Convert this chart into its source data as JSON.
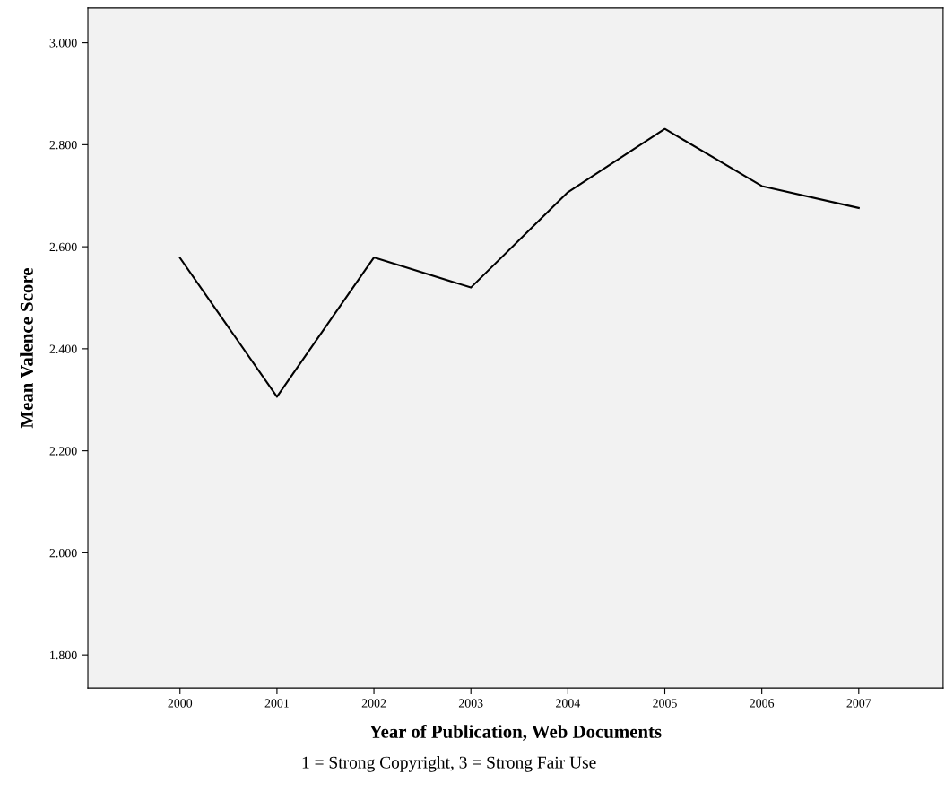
{
  "chart_data": {
    "type": "line",
    "xlabel": "Year of Publication, Web Documents",
    "ylabel": "Mean Valence Score",
    "categories": [
      "2000",
      "2001",
      "2002",
      "2003",
      "2004",
      "2005",
      "2006",
      "2007"
    ],
    "series": [
      {
        "color": "#000000",
        "values": [
          2.578,
          2.306,
          2.579,
          2.52,
          2.707,
          2.831,
          2.719,
          2.676
        ]
      }
    ],
    "ylim": [
      1.735,
      3.068
    ],
    "yticks": [
      {
        "value": 1.8,
        "label": "1.800"
      },
      {
        "value": 2.0,
        "label": "2.000"
      },
      {
        "value": 2.2,
        "label": "2.200"
      },
      {
        "value": 2.4,
        "label": "2.400"
      },
      {
        "value": 2.6,
        "label": "2.600"
      },
      {
        "value": 2.8,
        "label": "2.800"
      },
      {
        "value": 3.0,
        "label": "3.000"
      }
    ],
    "grid": false,
    "marker": "none",
    "line_style": "solid",
    "legend": false,
    "annotations": [
      "1 = Strong Copyright, 3 = Strong Fair Use"
    ]
  }
}
